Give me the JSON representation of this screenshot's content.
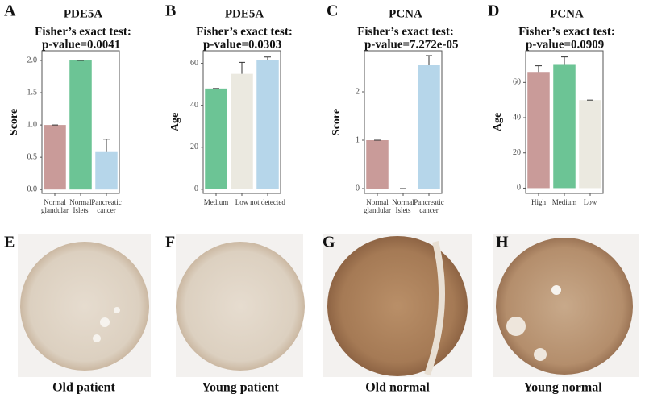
{
  "chart_data": [
    {
      "type": "bar",
      "panel": "A",
      "title": "PDE5A",
      "subtitle": "Fisher’s exact test:",
      "annotation": "p-value=0.0041",
      "y_label": "Score",
      "categories": [
        "Normal\nglandular",
        "Normal\nIslets",
        "Pancreatic\ncancer"
      ],
      "values": [
        1.0,
        2.0,
        0.58
      ],
      "errors": [
        0,
        0,
        0.2
      ],
      "colors": [
        "#c99b99",
        "#6cc495",
        "#b6d6ea"
      ],
      "ylim": [
        -0.06,
        2.15
      ],
      "yticks": [
        {
          "value": 0,
          "label": "0.0"
        },
        0.5,
        {
          "value": 1,
          "label": "1.0"
        },
        1.5,
        {
          "value": 2,
          "label": "2.0"
        }
      ]
    },
    {
      "type": "bar",
      "panel": "B",
      "title": "PDE5A",
      "subtitle": "Fisher’s exact test:",
      "annotation": "p-value=0.0303",
      "y_label": "Age",
      "categories": [
        "Medium",
        "Low",
        "not detected"
      ],
      "values": [
        48,
        55,
        61.5
      ],
      "errors": [
        0,
        5.5,
        1.5
      ],
      "colors": [
        "#6cc495",
        "#ebe9e0",
        "#b6d6ea"
      ],
      "ylim": [
        -2,
        66
      ],
      "yticks": [
        0,
        20,
        40,
        60
      ]
    },
    {
      "type": "bar",
      "panel": "C",
      "title": "PCNA",
      "subtitle": "Fisher’s exact test:",
      "annotation": "p-value=7.272e-05",
      "y_label": "Score",
      "categories": [
        "Normal\nglandular",
        "Normal\nIslets",
        "Pancreatic\ncancer"
      ],
      "values": [
        1.0,
        0,
        2.55
      ],
      "errors": [
        0,
        0,
        0.2
      ],
      "colors": [
        "#c99b99",
        "#6cc495",
        "#b6d6ea"
      ],
      "ylim": [
        -0.1,
        2.85
      ],
      "yticks": [
        0,
        1,
        2
      ]
    },
    {
      "type": "bar",
      "panel": "D",
      "title": "PCNA",
      "subtitle": "Fisher’s exact test:",
      "annotation": "p-value=0.0909",
      "y_label": "Age",
      "categories": [
        "High",
        "Medium",
        "Low"
      ],
      "values": [
        66,
        70,
        50
      ],
      "errors": [
        3.5,
        4.5,
        0
      ],
      "colors": [
        "#c99b99",
        "#6cc495",
        "#ebe9e0"
      ],
      "ylim": [
        -3,
        78
      ],
      "yticks": [
        0,
        20,
        40,
        60
      ]
    }
  ],
  "images": [
    {
      "panel": "E",
      "caption": "Old patient"
    },
    {
      "panel": "F",
      "caption": "Young patient"
    },
    {
      "panel": "G",
      "caption": "Old normal"
    },
    {
      "panel": "H",
      "caption": "Young  normal"
    }
  ]
}
